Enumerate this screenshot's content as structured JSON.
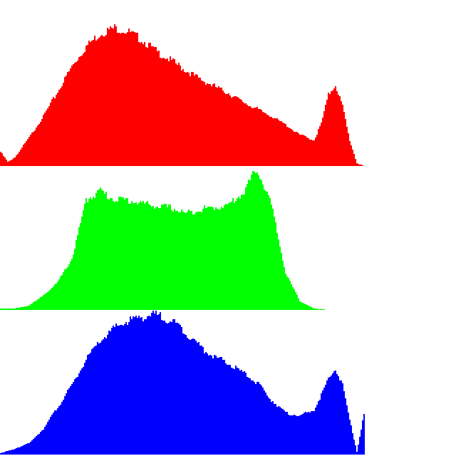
{
  "chart_data": [
    {
      "type": "bar",
      "title": "",
      "xlabel": "",
      "ylabel": "",
      "channel": "red",
      "color": "#ff0000",
      "xlim": [
        0,
        255
      ],
      "ylim": [
        0,
        1
      ],
      "grid": false,
      "x": [
        0,
        5,
        10,
        20,
        30,
        40,
        50,
        60,
        70,
        80,
        90,
        100,
        110,
        120,
        130,
        140,
        150,
        160,
        170,
        180,
        190,
        200,
        210,
        220,
        225,
        230,
        235,
        240,
        245,
        250,
        255
      ],
      "values": [
        0.1,
        0.03,
        0.06,
        0.2,
        0.35,
        0.52,
        0.7,
        0.84,
        0.93,
        0.97,
        0.94,
        0.88,
        0.8,
        0.74,
        0.67,
        0.61,
        0.56,
        0.51,
        0.45,
        0.4,
        0.35,
        0.29,
        0.22,
        0.18,
        0.3,
        0.5,
        0.57,
        0.42,
        0.18,
        0.02,
        0.0
      ]
    },
    {
      "type": "bar",
      "title": "",
      "xlabel": "",
      "ylabel": "",
      "channel": "green",
      "color": "#00ff00",
      "xlim": [
        0,
        255
      ],
      "ylim": [
        0,
        1
      ],
      "grid": false,
      "x": [
        0,
        10,
        20,
        30,
        40,
        50,
        60,
        70,
        75,
        80,
        90,
        100,
        110,
        120,
        130,
        140,
        150,
        160,
        170,
        180,
        190,
        200,
        210,
        220,
        230
      ],
      "values": [
        0.01,
        0.01,
        0.03,
        0.1,
        0.19,
        0.35,
        0.75,
        0.82,
        0.78,
        0.76,
        0.75,
        0.73,
        0.71,
        0.7,
        0.66,
        0.69,
        0.7,
        0.72,
        0.8,
        0.97,
        0.72,
        0.25,
        0.06,
        0.01,
        0.0
      ]
    },
    {
      "type": "bar",
      "title": "",
      "xlabel": "",
      "ylabel": "",
      "channel": "blue",
      "color": "#0000ff",
      "xlim": [
        0,
        255
      ],
      "ylim": [
        0,
        1
      ],
      "grid": false,
      "x": [
        0,
        10,
        20,
        30,
        40,
        50,
        60,
        70,
        80,
        90,
        100,
        110,
        120,
        130,
        140,
        150,
        160,
        170,
        180,
        190,
        200,
        210,
        220,
        230,
        235,
        240,
        245,
        250,
        255
      ],
      "values": [
        0.01,
        0.04,
        0.08,
        0.18,
        0.33,
        0.48,
        0.66,
        0.79,
        0.88,
        0.93,
        0.96,
        0.97,
        0.93,
        0.85,
        0.75,
        0.68,
        0.63,
        0.57,
        0.5,
        0.38,
        0.29,
        0.27,
        0.31,
        0.52,
        0.6,
        0.48,
        0.24,
        0.02,
        0.28
      ]
    }
  ]
}
